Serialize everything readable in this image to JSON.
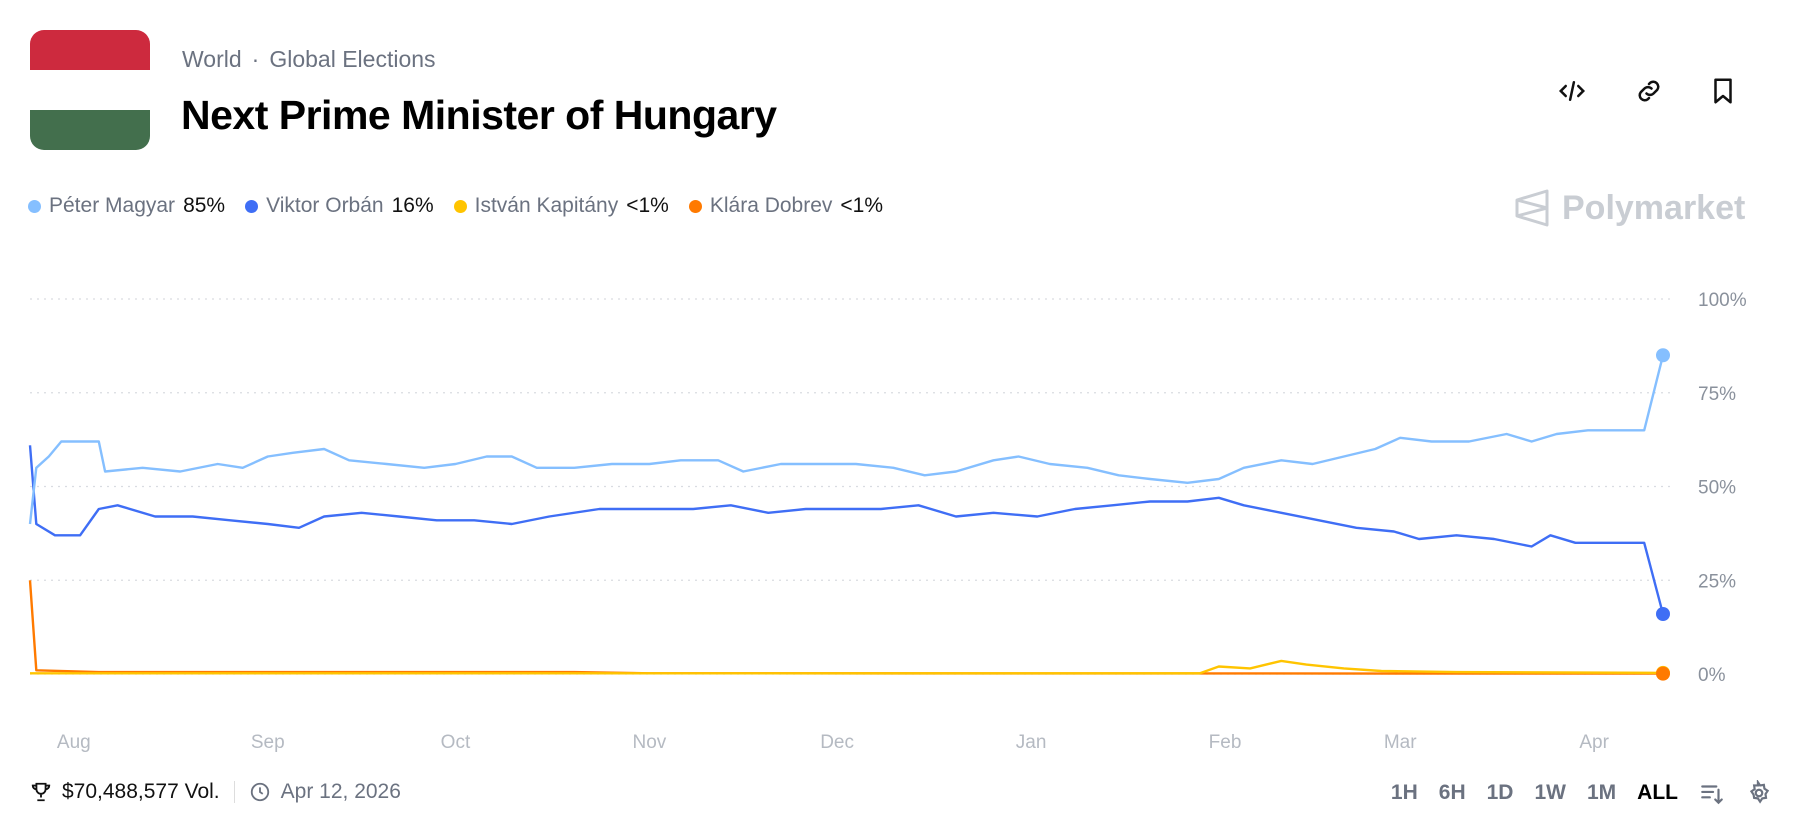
{
  "header": {
    "breadcrumb": [
      "World",
      "Global Elections"
    ],
    "separator": "·",
    "title": "Next Prime Minister of Hungary"
  },
  "flag_colors": [
    "#CD2A3E",
    "#FFFFFF",
    "#436F4D"
  ],
  "toolbar": {
    "icons": [
      "embed-code-icon",
      "link-icon",
      "bookmark-icon"
    ]
  },
  "brand": "Polymarket",
  "legend": [
    {
      "name": "Péter Magyar",
      "pct": "85%",
      "color": "#85BFFF"
    },
    {
      "name": "Viktor Orbán",
      "pct": "16%",
      "color": "#3F6EF5"
    },
    {
      "name": "István Kapitány",
      "pct": "<1%",
      "color": "#FFC400"
    },
    {
      "name": "Klára Dobrev",
      "pct": "<1%",
      "color": "#FF7A00"
    }
  ],
  "footer": {
    "volume": "$70,488,577 Vol.",
    "date": "Apr 12, 2026",
    "timeframes": [
      "1H",
      "6H",
      "1D",
      "1W",
      "1M",
      "ALL"
    ],
    "active": "ALL"
  },
  "chart_data": {
    "type": "line",
    "title": "Next Prime Minister of Hungary",
    "xlabel": "",
    "ylabel": "",
    "xlim": [
      "2025-07-25",
      "2026-04-12"
    ],
    "ylim": [
      0,
      100
    ],
    "y_ticks": [
      "100%",
      "75%",
      "50%",
      "25%",
      "0%"
    ],
    "y_tick_values": [
      100,
      75,
      50,
      25,
      0
    ],
    "x_ticks": [
      {
        "label": "Aug",
        "date": "2025-08-01"
      },
      {
        "label": "Sep",
        "date": "2025-09-01"
      },
      {
        "label": "Oct",
        "date": "2025-10-01"
      },
      {
        "label": "Nov",
        "date": "2025-11-01"
      },
      {
        "label": "Dec",
        "date": "2025-12-01"
      },
      {
        "label": "Jan",
        "date": "2026-01-01"
      },
      {
        "label": "Feb",
        "date": "2026-02-01"
      },
      {
        "label": "Mar",
        "date": "2026-03-01"
      },
      {
        "label": "Apr",
        "date": "2026-04-01"
      }
    ],
    "grid": true,
    "legend_position": "top-left",
    "series": [
      {
        "name": "Péter Magyar",
        "color": "#85BFFF",
        "points": [
          [
            "2025-07-25",
            40
          ],
          [
            "2025-07-26",
            55
          ],
          [
            "2025-07-28",
            58
          ],
          [
            "2025-07-30",
            62
          ],
          [
            "2025-08-05",
            62
          ],
          [
            "2025-08-06",
            54
          ],
          [
            "2025-08-12",
            55
          ],
          [
            "2025-08-18",
            54
          ],
          [
            "2025-08-24",
            56
          ],
          [
            "2025-08-28",
            55
          ],
          [
            "2025-09-01",
            58
          ],
          [
            "2025-09-05",
            59
          ],
          [
            "2025-09-10",
            60
          ],
          [
            "2025-09-14",
            57
          ],
          [
            "2025-09-20",
            56
          ],
          [
            "2025-09-26",
            55
          ],
          [
            "2025-10-01",
            56
          ],
          [
            "2025-10-06",
            58
          ],
          [
            "2025-10-10",
            58
          ],
          [
            "2025-10-14",
            55
          ],
          [
            "2025-10-20",
            55
          ],
          [
            "2025-10-26",
            56
          ],
          [
            "2025-11-01",
            56
          ],
          [
            "2025-11-06",
            57
          ],
          [
            "2025-11-12",
            57
          ],
          [
            "2025-11-16",
            54
          ],
          [
            "2025-11-22",
            56
          ],
          [
            "2025-11-28",
            56
          ],
          [
            "2025-12-04",
            56
          ],
          [
            "2025-12-10",
            55
          ],
          [
            "2025-12-15",
            53
          ],
          [
            "2025-12-20",
            54
          ],
          [
            "2025-12-26",
            57
          ],
          [
            "2025-12-30",
            58
          ],
          [
            "2026-01-04",
            56
          ],
          [
            "2026-01-10",
            55
          ],
          [
            "2026-01-15",
            53
          ],
          [
            "2026-01-20",
            52
          ],
          [
            "2026-01-26",
            51
          ],
          [
            "2026-01-31",
            52
          ],
          [
            "2026-02-04",
            55
          ],
          [
            "2026-02-10",
            57
          ],
          [
            "2026-02-15",
            56
          ],
          [
            "2026-02-20",
            58
          ],
          [
            "2026-02-25",
            60
          ],
          [
            "2026-03-01",
            63
          ],
          [
            "2026-03-06",
            62
          ],
          [
            "2026-03-12",
            62
          ],
          [
            "2026-03-18",
            64
          ],
          [
            "2026-03-22",
            62
          ],
          [
            "2026-03-26",
            64
          ],
          [
            "2026-03-31",
            65
          ],
          [
            "2026-04-05",
            65
          ],
          [
            "2026-04-09",
            65
          ],
          [
            "2026-04-12",
            85
          ]
        ]
      },
      {
        "name": "Viktor Orbán",
        "color": "#3F6EF5",
        "points": [
          [
            "2025-07-25",
            61
          ],
          [
            "2025-07-26",
            40
          ],
          [
            "2025-07-29",
            37
          ],
          [
            "2025-08-02",
            37
          ],
          [
            "2025-08-05",
            44
          ],
          [
            "2025-08-08",
            45
          ],
          [
            "2025-08-14",
            42
          ],
          [
            "2025-08-20",
            42
          ],
          [
            "2025-08-26",
            41
          ],
          [
            "2025-09-01",
            40
          ],
          [
            "2025-09-06",
            39
          ],
          [
            "2025-09-10",
            42
          ],
          [
            "2025-09-16",
            43
          ],
          [
            "2025-09-22",
            42
          ],
          [
            "2025-09-28",
            41
          ],
          [
            "2025-10-04",
            41
          ],
          [
            "2025-10-10",
            40
          ],
          [
            "2025-10-16",
            42
          ],
          [
            "2025-10-24",
            44
          ],
          [
            "2025-11-01",
            44
          ],
          [
            "2025-11-08",
            44
          ],
          [
            "2025-11-14",
            45
          ],
          [
            "2025-11-20",
            43
          ],
          [
            "2025-11-26",
            44
          ],
          [
            "2025-12-02",
            44
          ],
          [
            "2025-12-08",
            44
          ],
          [
            "2025-12-14",
            45
          ],
          [
            "2025-12-20",
            42
          ],
          [
            "2025-12-26",
            43
          ],
          [
            "2026-01-02",
            42
          ],
          [
            "2026-01-08",
            44
          ],
          [
            "2026-01-14",
            45
          ],
          [
            "2026-01-20",
            46
          ],
          [
            "2026-01-26",
            46
          ],
          [
            "2026-01-31",
            47
          ],
          [
            "2026-02-04",
            45
          ],
          [
            "2026-02-10",
            43
          ],
          [
            "2026-02-16",
            41
          ],
          [
            "2026-02-22",
            39
          ],
          [
            "2026-02-28",
            38
          ],
          [
            "2026-03-04",
            36
          ],
          [
            "2026-03-10",
            37
          ],
          [
            "2026-03-16",
            36
          ],
          [
            "2026-03-22",
            34
          ],
          [
            "2026-03-25",
            37
          ],
          [
            "2026-03-29",
            35
          ],
          [
            "2026-04-01",
            35
          ],
          [
            "2026-04-09",
            35
          ],
          [
            "2026-04-12",
            16
          ]
        ]
      },
      {
        "name": "István Kapitány",
        "color": "#FFC400",
        "points": [
          [
            "2025-07-25",
            0.2
          ],
          [
            "2026-01-28",
            0.2
          ],
          [
            "2026-01-31",
            2
          ],
          [
            "2026-02-05",
            1.5
          ],
          [
            "2026-02-10",
            3.5
          ],
          [
            "2026-02-14",
            2.5
          ],
          [
            "2026-02-20",
            1.5
          ],
          [
            "2026-02-26",
            0.8
          ],
          [
            "2026-03-10",
            0.5
          ],
          [
            "2026-03-26",
            0.4
          ],
          [
            "2026-04-12",
            0.3
          ]
        ]
      },
      {
        "name": "Klára Dobrev",
        "color": "#FF7A00",
        "points": [
          [
            "2025-07-25",
            25
          ],
          [
            "2025-07-26",
            1
          ],
          [
            "2025-08-05",
            0.5
          ],
          [
            "2025-09-01",
            0.5
          ],
          [
            "2025-10-01",
            0.5
          ],
          [
            "2025-10-20",
            0.5
          ],
          [
            "2025-11-01",
            0.2
          ],
          [
            "2026-04-12",
            0.1
          ]
        ]
      }
    ]
  }
}
